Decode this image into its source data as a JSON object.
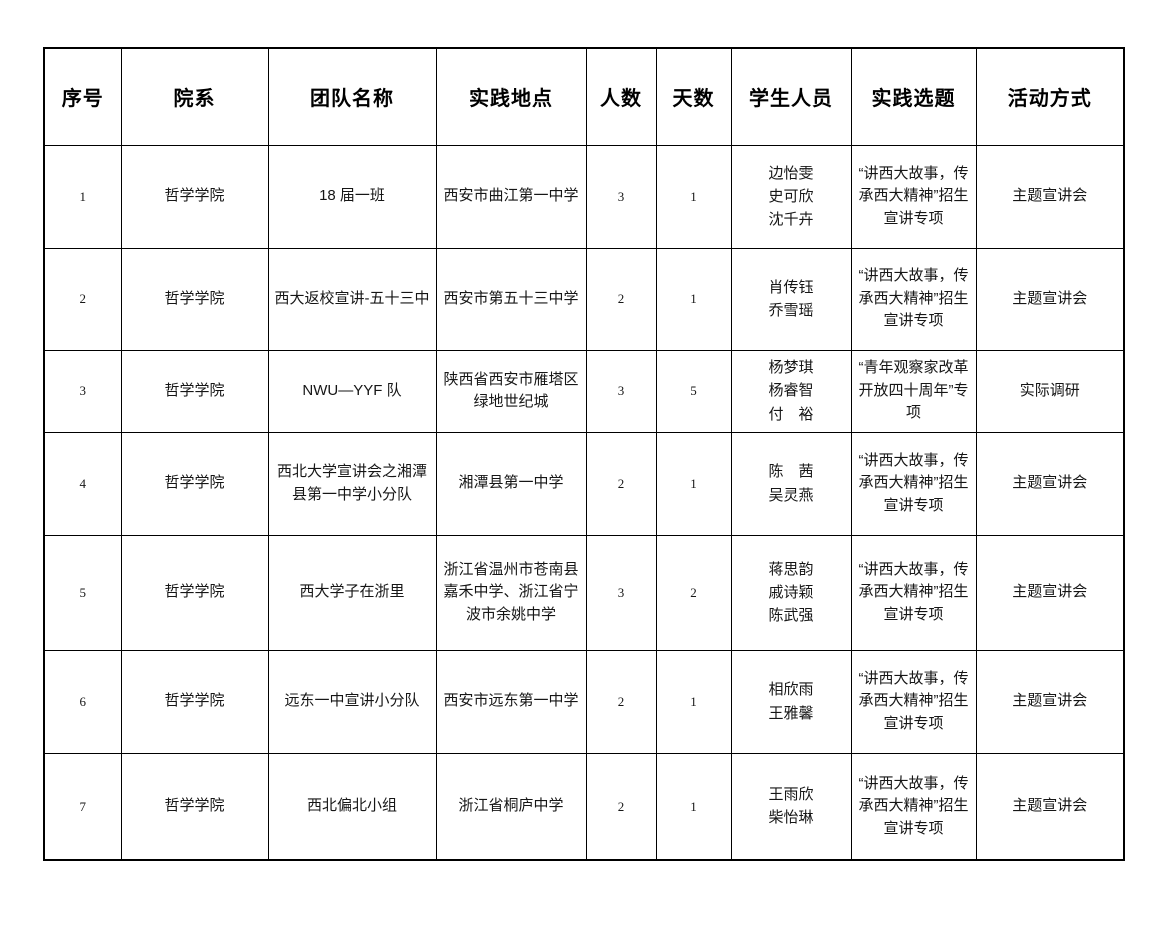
{
  "page": {
    "background_color": "#ffffff",
    "border_color": "#000000"
  },
  "table": {
    "columns": [
      "序号",
      "院系",
      "团队名称",
      "实践地点",
      "人数",
      "天数",
      "学生人员",
      "实践选题",
      "活动方式"
    ],
    "rows": [
      {
        "index": "1",
        "department": "哲学学院",
        "team": "18 届一班",
        "location": "西安市曲江第一中学",
        "people": "3",
        "days": "1",
        "students": [
          "边怡雯",
          "史可欣",
          "沈千卉"
        ],
        "topic": "“讲西大故事，传承西大精神”招生宣讲专项",
        "activity": "主题宣讲会"
      },
      {
        "index": "2",
        "department": "哲学学院",
        "team": "西大返校宣讲-五十三中",
        "location": "西安市第五十三中学",
        "people": "2",
        "days": "1",
        "students": [
          "肖传钰",
          "乔雪瑶"
        ],
        "topic": "“讲西大故事，传承西大精神”招生宣讲专项",
        "activity": "主题宣讲会"
      },
      {
        "index": "3",
        "department": "哲学学院",
        "team": "NWU—YYF 队",
        "location": "陕西省西安市雁塔区绿地世纪城",
        "people": "3",
        "days": "5",
        "students": [
          "杨梦琪",
          "杨睿智",
          "付　裕"
        ],
        "topic": "“青年观察家改革开放四十周年”专项",
        "activity": "实际调研"
      },
      {
        "index": "4",
        "department": "哲学学院",
        "team": "西北大学宣讲会之湘潭县第一中学小分队",
        "location": "湘潭县第一中学",
        "people": "2",
        "days": "1",
        "students": [
          "陈　茜",
          "吴灵燕"
        ],
        "topic": "“讲西大故事，传承西大精神”招生宣讲专项",
        "activity": "主题宣讲会"
      },
      {
        "index": "5",
        "department": "哲学学院",
        "team": "西大学子在浙里",
        "location": "浙江省温州市苍南县嘉禾中学、浙江省宁波市余姚中学",
        "people": "3",
        "days": "2",
        "students": [
          "蒋思韵",
          "戚诗颖",
          "陈武强"
        ],
        "topic": "“讲西大故事，传承西大精神”招生宣讲专项",
        "activity": "主题宣讲会"
      },
      {
        "index": "6",
        "department": "哲学学院",
        "team": "远东一中宣讲小分队",
        "location": "西安市远东第一中学",
        "people": "2",
        "days": "1",
        "students": [
          "相欣雨",
          "王雅馨"
        ],
        "topic": "“讲西大故事，传承西大精神”招生宣讲专项",
        "activity": "主题宣讲会"
      },
      {
        "index": "7",
        "department": "哲学学院",
        "team": "西北偏北小组",
        "location": "浙江省桐庐中学",
        "people": "2",
        "days": "1",
        "students": [
          "王雨欣",
          "柴怡琳"
        ],
        "topic": "“讲西大故事，传承西大精神”招生宣讲专项",
        "activity": "主题宣讲会"
      }
    ]
  }
}
